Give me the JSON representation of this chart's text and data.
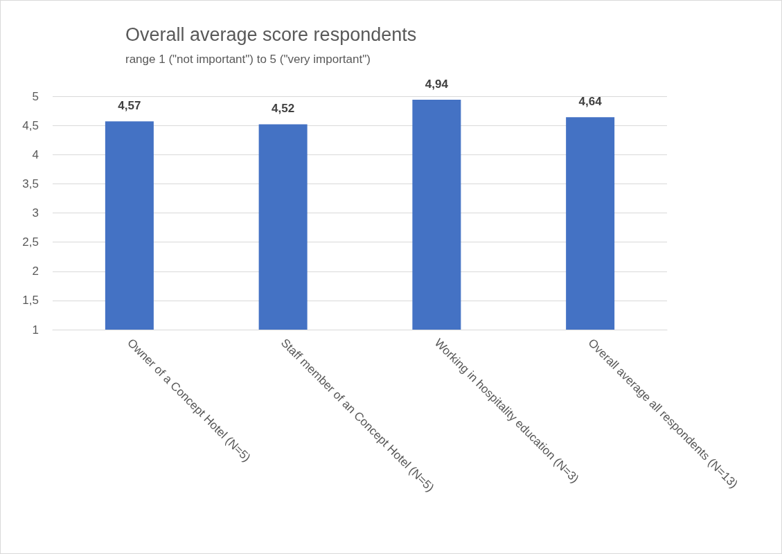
{
  "chart_data": {
    "type": "bar",
    "title": "Overall average score respondents",
    "subtitle": "range 1 (\"not important\") to 5 (\"very important\")",
    "categories": [
      "Owner of a Concept Hotel (N=5)",
      "Staff member of an Concept Hotel (N=5)",
      "Working in hospitality education (N=3)",
      "Overall average all respondents (N=13)"
    ],
    "values": [
      4.57,
      4.52,
      4.94,
      4.64
    ],
    "value_labels": [
      "4,57",
      "4,52",
      "4,94",
      "4,64"
    ],
    "color": "#4472c4",
    "ylim": [
      1,
      5
    ],
    "yticks": [
      1,
      {
        "value": 1.5,
        "label": "1,5"
      },
      2,
      {
        "value": 2.5,
        "label": "2,5"
      },
      3,
      {
        "value": 3.5,
        "label": "3,5"
      },
      4,
      {
        "value": 4.5,
        "label": "4,5"
      },
      5
    ],
    "grid": "y"
  }
}
